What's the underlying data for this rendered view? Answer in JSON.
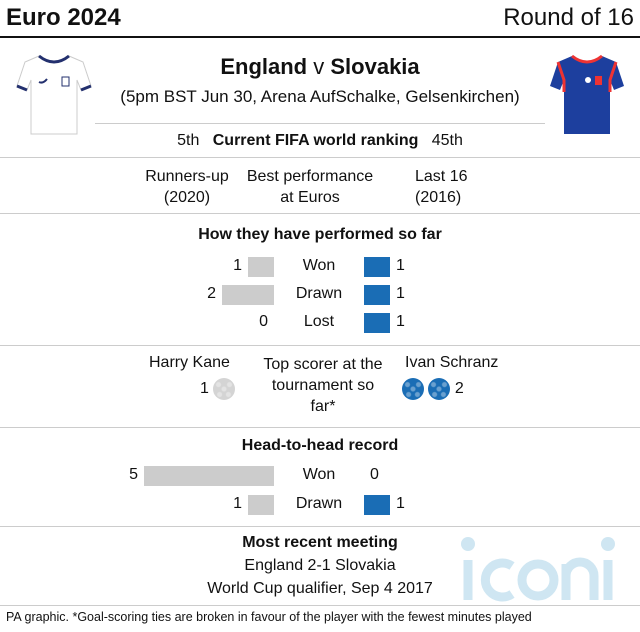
{
  "header": {
    "title": "Euro 2024",
    "stage": "Round of 16"
  },
  "match": {
    "home": "England",
    "sep": "v",
    "away": "Slovakia",
    "details": "(5pm BST Jun 30, Arena AufSchalke, Gelsenkirchen)"
  },
  "ranking": {
    "home": "5th",
    "label": "Current FIFA world ranking",
    "away": "45th"
  },
  "best": {
    "home": "Runners-up (2020)",
    "label": "Best performance at Euros",
    "away": "Last 16 (2016)"
  },
  "performance": {
    "title": "How they have performed so far",
    "rows": [
      {
        "label": "Won",
        "home": 1,
        "away": 1
      },
      {
        "label": "Drawn",
        "home": 2,
        "away": 1
      },
      {
        "label": "Lost",
        "home": 0,
        "away": 1
      }
    ]
  },
  "scorer": {
    "home_name": "Harry Kane",
    "home_goals": "1",
    "label": "Top scorer at the tournament so far*",
    "away_name": "Ivan Schranz",
    "away_goals": "2"
  },
  "h2h": {
    "title": "Head-to-head record",
    "rows": [
      {
        "label": "Won",
        "home": 5,
        "away": 0
      },
      {
        "label": "Drawn",
        "home": 1,
        "away": 1
      }
    ]
  },
  "recent": {
    "title": "Most recent meeting",
    "result": "England 2-1 Slovakia",
    "event": "World Cup qualifier, Sep 4 2017"
  },
  "footer": "PA graphic. *Goal-scoring ties are broken in favour of the player with the fewest minutes played",
  "watermark": "iconic",
  "colors": {
    "home": "#cccccc",
    "away": "#1a6db5",
    "watermark": "#cfe6f2"
  }
}
